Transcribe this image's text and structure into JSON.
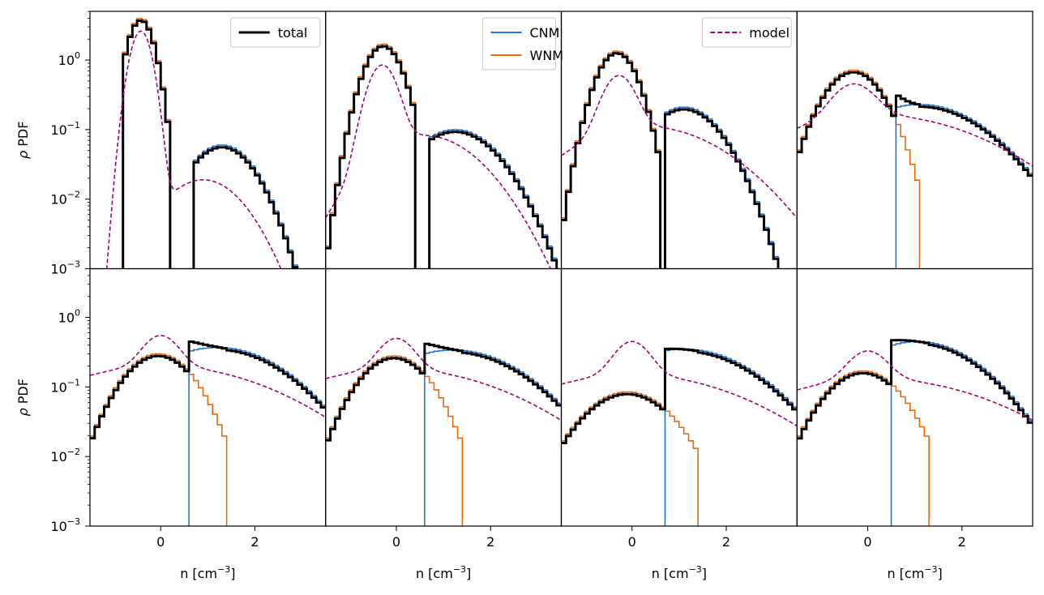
{
  "chart_data": {
    "type": "line",
    "layout": {
      "rows": 2,
      "cols": 4
    },
    "x_range": [
      -1.5,
      3.5
    ],
    "y_range_log10": [
      -3,
      0.7
    ],
    "y_scale": "log",
    "xlabel": "n [cm$^{-3}$]",
    "xlabel_base": "n [cm",
    "xlabel_exp": "−3",
    "xlabel_close": "]",
    "ylabel": "ρ PDF",
    "ylabel_rho": "ρ",
    "ylabel_pdf": "PDF",
    "x_ticks": [
      {
        "value": 0,
        "label": "0"
      },
      {
        "value": 2,
        "label": "2"
      }
    ],
    "y_ticks": [
      {
        "value": -3,
        "label_base": "10",
        "label_exp": "−3"
      },
      {
        "value": -2,
        "label_base": "10",
        "label_exp": "−2"
      },
      {
        "value": -1,
        "label_base": "10",
        "label_exp": "−1"
      },
      {
        "value": 0,
        "label_base": "10",
        "label_exp": "0"
      }
    ],
    "colors": {
      "total": "#000000",
      "CNM": "#1f77d4",
      "WNM": "#e86a10",
      "model": "#a8006f"
    },
    "legends": [
      {
        "panel": 0,
        "entries": [
          {
            "key": "total",
            "label": "total",
            "style": "solid"
          }
        ]
      },
      {
        "panel": 1,
        "entries": [
          {
            "key": "CNM",
            "label": "CNM",
            "style": "solid"
          },
          {
            "key": "WNM",
            "label": "WNM",
            "style": "solid"
          }
        ]
      },
      {
        "panel": 2,
        "entries": [
          {
            "key": "model",
            "label": "model",
            "style": "dashed"
          }
        ]
      }
    ],
    "panels": [
      {
        "wnm": {
          "A": 4.0,
          "mu": -0.42,
          "s": 0.22,
          "tail": 0.0,
          "start": -0.75,
          "end": 0.25
        },
        "cnm": {
          "A": 0.06,
          "mu": 1.3,
          "s": 0.55,
          "start": 0.68
        },
        "model": [
          {
            "A": 2.6,
            "mu": -0.42,
            "s": 0.18
          },
          {
            "A": 0.019,
            "mu": 0.9,
            "s": 0.68
          }
        ]
      },
      {
        "wnm": {
          "A": 1.7,
          "mu": -0.28,
          "s": 0.32,
          "tail": 0.0,
          "start": -1.5,
          "end": 0.4
        },
        "cnm": {
          "A": 0.1,
          "mu": 1.25,
          "s": 0.72,
          "start": 0.7
        },
        "model": [
          {
            "A": 0.8,
            "mu": -0.3,
            "s": 0.25
          },
          {
            "A": 0.082,
            "mu": 0.6,
            "s": 0.9
          }
        ]
      },
      {
        "wnm": {
          "A": 1.35,
          "mu": -0.32,
          "s": 0.34,
          "tail": 0.0,
          "start": -1.5,
          "end": 0.65
        },
        "cnm": {
          "A": 0.21,
          "mu": 1.1,
          "s": 0.62,
          "start": 0.72
        },
        "model": [
          {
            "A": 0.5,
            "mu": -0.28,
            "s": 0.28
          },
          {
            "A": 0.11,
            "mu": 0.3,
            "s": 1.3
          }
        ]
      },
      {
        "wnm": {
          "A": 0.72,
          "mu": -0.3,
          "s": 0.5,
          "tail": 0.025,
          "start": -1.5,
          "end": 1.15
        },
        "cnm": {
          "A": 0.23,
          "mu": 1.1,
          "s": 1.1,
          "start": 0.62
        },
        "model": [
          {
            "A": 0.3,
            "mu": -0.3,
            "s": 0.38
          },
          {
            "A": 0.16,
            "mu": 0.2,
            "s": 1.8
          }
        ]
      },
      {
        "wnm": {
          "A": 0.3,
          "mu": -0.05,
          "s": 0.6,
          "tail": 0.03,
          "start": -1.5,
          "end": 1.45
        },
        "cnm": {
          "A": 0.37,
          "mu": 1.2,
          "s": 1.15,
          "start": 0.58
        },
        "model": [
          {
            "A": 0.35,
            "mu": 0.0,
            "s": 0.32
          },
          {
            "A": 0.2,
            "mu": 0.0,
            "s": 1.9
          }
        ]
      },
      {
        "wnm": {
          "A": 0.28,
          "mu": -0.05,
          "s": 0.6,
          "tail": 0.03,
          "start": -1.5,
          "end": 1.45
        },
        "cnm": {
          "A": 0.34,
          "mu": 1.2,
          "s": 1.2,
          "start": 0.58
        },
        "model": [
          {
            "A": 0.32,
            "mu": 0.0,
            "s": 0.32
          },
          {
            "A": 0.18,
            "mu": 0.0,
            "s": 1.9
          }
        ]
      },
      {
        "wnm": {
          "A": 0.085,
          "mu": -0.1,
          "s": 0.75,
          "tail": 0.02,
          "start": -1.5,
          "end": 1.45
        },
        "cnm": {
          "A": 0.35,
          "mu": 1.1,
          "s": 1.2,
          "start": 0.68
        },
        "model": [
          {
            "A": 0.3,
            "mu": 0.0,
            "s": 0.32
          },
          {
            "A": 0.15,
            "mu": 0.0,
            "s": 1.9
          }
        ]
      },
      {
        "wnm": {
          "A": 0.17,
          "mu": -0.1,
          "s": 0.65,
          "tail": 0.03,
          "start": -1.5,
          "end": 1.3
        },
        "cnm": {
          "A": 0.45,
          "mu": 1.05,
          "s": 1.05,
          "start": 0.55
        },
        "model": [
          {
            "A": 0.2,
            "mu": 0.0,
            "s": 0.35
          },
          {
            "A": 0.13,
            "mu": 0.2,
            "s": 2.0
          }
        ]
      }
    ]
  }
}
